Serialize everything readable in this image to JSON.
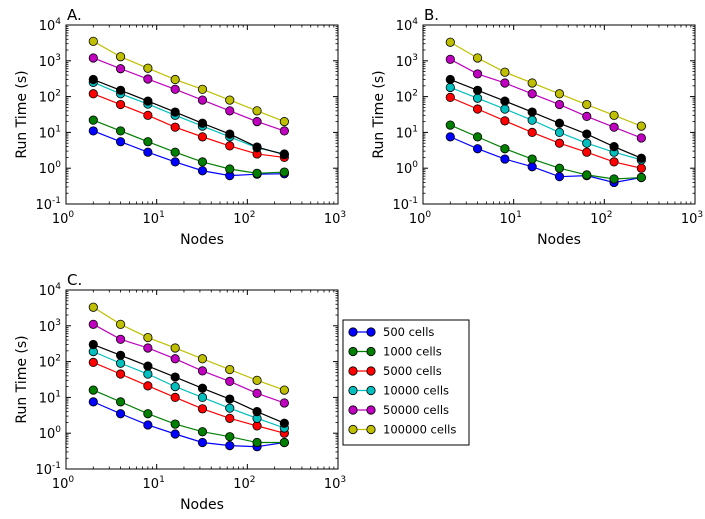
{
  "series_colors": [
    "#0000ff",
    "#007f00",
    "#ff0000",
    "#00bfbf",
    "#bf00bf",
    "#bfbf00",
    "#000000"
  ],
  "legend": {
    "entries": [
      "500 cells",
      "1000 cells",
      "5000 cells",
      "10000 cells",
      "50000 cells",
      "100000 cells"
    ]
  },
  "chart_data": [
    {
      "type": "line",
      "panel_label": "A.",
      "xlabel": "Nodes",
      "ylabel": "Run Time (s)",
      "xscale": "log",
      "yscale": "log",
      "xlim": [
        1,
        1000
      ],
      "ylim": [
        0.1,
        10000
      ],
      "grid": false,
      "x": [
        2,
        4,
        8,
        16,
        32,
        64,
        128,
        256
      ],
      "x_tick_labels": [
        {
          "base": "10",
          "exp": "0"
        },
        {
          "base": "10",
          "exp": "1"
        },
        {
          "base": "10",
          "exp": "2"
        },
        {
          "base": "10",
          "exp": "3"
        }
      ],
      "y_tick_labels": [
        {
          "base": "10",
          "exp": "-1"
        },
        {
          "base": "10",
          "exp": "0"
        },
        {
          "base": "10",
          "exp": "1"
        },
        {
          "base": "10",
          "exp": "2"
        },
        {
          "base": "10",
          "exp": "3"
        },
        {
          "base": "10",
          "exp": "4"
        }
      ],
      "series": [
        {
          "name": "500 cells",
          "values": [
            11,
            5.5,
            2.8,
            1.5,
            0.85,
            0.62,
            0.68,
            0.7
          ]
        },
        {
          "name": "1000 cells",
          "values": [
            22,
            11,
            5.5,
            2.8,
            1.5,
            0.95,
            0.72,
            0.78
          ]
        },
        {
          "name": "5000 cells",
          "values": [
            120,
            60,
            30,
            14,
            7.5,
            4.2,
            2.5,
            2.0
          ]
        },
        {
          "name": "10000 cells",
          "values": [
            250,
            120,
            62,
            30,
            15,
            7.5,
            3.7,
            2.5
          ]
        },
        {
          "values": [
            300,
            150,
            75,
            37,
            18,
            9,
            3.9,
            2.4
          ]
        },
        {
          "name": "50000 cells",
          "values": [
            1200,
            600,
            310,
            160,
            80,
            40,
            20,
            11
          ]
        },
        {
          "name": "100000 cells",
          "values": [
            3500,
            1300,
            620,
            300,
            160,
            80,
            40,
            20
          ]
        }
      ]
    },
    {
      "type": "line",
      "panel_label": "B.",
      "xlabel": "Nodes",
      "ylabel": "Run Time (s)",
      "xscale": "log",
      "yscale": "log",
      "xlim": [
        1,
        1000
      ],
      "ylim": [
        0.1,
        10000
      ],
      "grid": false,
      "x": [
        2,
        4,
        8,
        16,
        32,
        64,
        128,
        256
      ],
      "x_tick_labels": [
        {
          "base": "10",
          "exp": "0"
        },
        {
          "base": "10",
          "exp": "1"
        },
        {
          "base": "10",
          "exp": "2"
        },
        {
          "base": "10",
          "exp": "3"
        }
      ],
      "y_tick_labels": [
        {
          "base": "10",
          "exp": "-1"
        },
        {
          "base": "10",
          "exp": "0"
        },
        {
          "base": "10",
          "exp": "1"
        },
        {
          "base": "10",
          "exp": "2"
        },
        {
          "base": "10",
          "exp": "3"
        },
        {
          "base": "10",
          "exp": "4"
        }
      ],
      "series": [
        {
          "name": "500 cells",
          "values": [
            7.5,
            3.5,
            1.8,
            1.1,
            0.58,
            0.62,
            0.4,
            0.55
          ]
        },
        {
          "name": "1000 cells",
          "values": [
            16,
            7.5,
            3.5,
            1.8,
            1.0,
            0.65,
            0.5,
            0.55
          ]
        },
        {
          "name": "5000 cells",
          "values": [
            95,
            45,
            21,
            10,
            5,
            2.8,
            1.5,
            1.0
          ]
        },
        {
          "name": "10000 cells",
          "values": [
            180,
            90,
            45,
            22,
            10,
            5,
            2.8,
            1.7
          ]
        },
        {
          "values": [
            300,
            150,
            75,
            37,
            18,
            9,
            4,
            1.9
          ]
        },
        {
          "name": "50000 cells",
          "values": [
            1100,
            430,
            240,
            120,
            60,
            28,
            14,
            7
          ]
        },
        {
          "name": "100000 cells",
          "values": [
            3300,
            1200,
            480,
            240,
            120,
            60,
            30,
            15
          ]
        }
      ]
    },
    {
      "type": "line",
      "panel_label": "C.",
      "xlabel": "Nodes",
      "ylabel": "Run Time (s)",
      "xscale": "log",
      "yscale": "log",
      "xlim": [
        1,
        1000
      ],
      "ylim": [
        0.1,
        10000
      ],
      "grid": false,
      "legend_position": "right",
      "x": [
        2,
        4,
        8,
        16,
        32,
        64,
        128,
        256
      ],
      "x_tick_labels": [
        {
          "base": "10",
          "exp": "0"
        },
        {
          "base": "10",
          "exp": "1"
        },
        {
          "base": "10",
          "exp": "2"
        },
        {
          "base": "10",
          "exp": "3"
        }
      ],
      "y_tick_labels": [
        {
          "base": "10",
          "exp": "-1"
        },
        {
          "base": "10",
          "exp": "0"
        },
        {
          "base": "10",
          "exp": "1"
        },
        {
          "base": "10",
          "exp": "2"
        },
        {
          "base": "10",
          "exp": "3"
        },
        {
          "base": "10",
          "exp": "4"
        }
      ],
      "series": [
        {
          "name": "500 cells",
          "values": [
            7.5,
            3.5,
            1.7,
            0.95,
            0.55,
            0.45,
            0.42,
            0.55
          ]
        },
        {
          "name": "1000 cells",
          "values": [
            16,
            7.5,
            3.5,
            1.8,
            1.1,
            0.8,
            0.55,
            0.55
          ]
        },
        {
          "name": "5000 cells",
          "values": [
            95,
            45,
            21,
            10,
            4.8,
            2.6,
            1.6,
            1.0
          ]
        },
        {
          "name": "10000 cells",
          "values": [
            190,
            90,
            45,
            20,
            10,
            5,
            2.6,
            1.4
          ]
        },
        {
          "values": [
            300,
            150,
            75,
            37,
            18,
            9,
            4,
            1.9
          ]
        },
        {
          "name": "50000 cells",
          "values": [
            1100,
            420,
            240,
            120,
            55,
            28,
            13,
            7
          ]
        },
        {
          "name": "100000 cells",
          "values": [
            3300,
            1100,
            470,
            240,
            120,
            60,
            30,
            16
          ]
        }
      ]
    }
  ]
}
